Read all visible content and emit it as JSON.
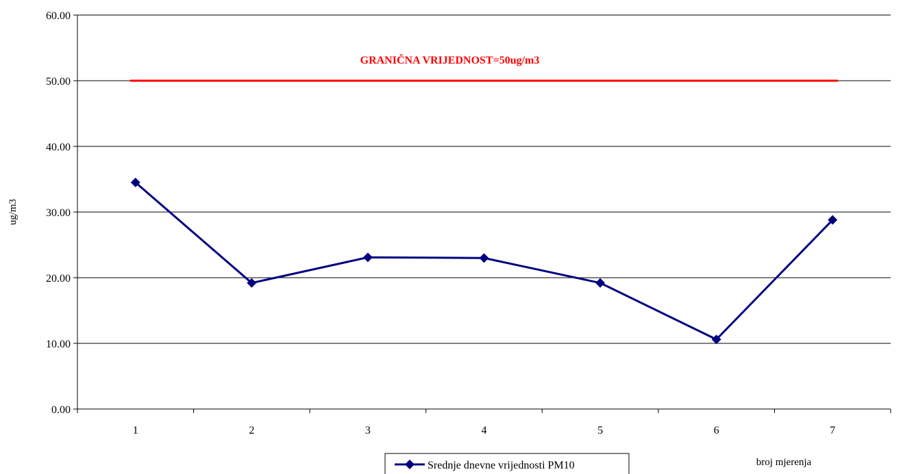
{
  "chart_data": {
    "type": "line",
    "x": [
      1,
      2,
      3,
      4,
      5,
      6,
      7
    ],
    "categories": [
      "1",
      "2",
      "3",
      "4",
      "5",
      "6",
      "7"
    ],
    "series": [
      {
        "name": "Srednje dnevne vrijednosti PM10",
        "values": [
          34.5,
          19.2,
          23.1,
          23.0,
          19.2,
          10.6,
          28.8
        ],
        "color": "#000080",
        "marker": "diamond"
      }
    ],
    "reference_line": {
      "value": 50,
      "label": "GRANIČNA VRIJEDNOST=50ug/m3",
      "color": "#ff0000"
    },
    "xlabel": "broj mjerenja",
    "ylabel": "ug/m3",
    "ylim": [
      0,
      60
    ],
    "yticks": [
      "0.00",
      "10.00",
      "20.00",
      "30.00",
      "40.00",
      "50.00",
      "60.00"
    ],
    "grid": true,
    "legend_position": "bottom-center"
  }
}
